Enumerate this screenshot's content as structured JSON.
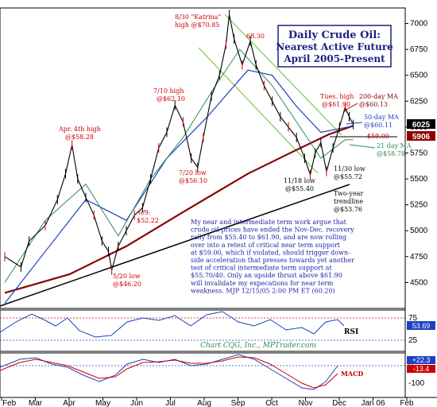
{
  "chart_data": {
    "type": "line",
    "title": "Daily Crude Oil:",
    "subtitle_lines": [
      "Nearest Active Future",
      "April 2005-Present"
    ],
    "price_axis": {
      "ylim": [
        4250,
        7150
      ],
      "ticks": [
        4500,
        4750,
        5000,
        5250,
        5500,
        5750,
        6000,
        6250,
        6500,
        6750,
        7000
      ]
    },
    "x_axis": {
      "tick_labels": [
        "Feb",
        "Mar",
        "Apr",
        "May",
        "Jun",
        "Jul",
        "Aug",
        "Sep",
        "Oct",
        "Nov",
        "Dec",
        "Jan 06",
        "Feb"
      ]
    },
    "price_series": {
      "name": "Crude Oil",
      "points": [
        [
          0,
          4750
        ],
        [
          2,
          4650
        ],
        [
          3,
          4900
        ],
        [
          5,
          5050
        ],
        [
          6.5,
          5300
        ],
        [
          7.5,
          5550
        ],
        [
          8.3,
          5828
        ],
        [
          9,
          5500
        ],
        [
          10,
          5320
        ],
        [
          11,
          5150
        ],
        [
          12,
          4900
        ],
        [
          12.8,
          4800
        ],
        [
          13.2,
          4620
        ],
        [
          14,
          4850
        ],
        [
          15,
          5000
        ],
        [
          16,
          5150
        ],
        [
          17,
          5222
        ],
        [
          18,
          5500
        ],
        [
          19,
          5800
        ],
        [
          20,
          5950
        ],
        [
          21,
          6210
        ],
        [
          22,
          6050
        ],
        [
          23,
          5700
        ],
        [
          23.8,
          5610
        ],
        [
          24.5,
          5900
        ],
        [
          25.5,
          6300
        ],
        [
          26.5,
          6500
        ],
        [
          27.3,
          6800
        ],
        [
          27.7,
          7085
        ],
        [
          28.3,
          6850
        ],
        [
          29.3,
          6600
        ],
        [
          30.3,
          6830
        ],
        [
          31,
          6600
        ],
        [
          32,
          6400
        ],
        [
          33,
          6250
        ],
        [
          34,
          6100
        ],
        [
          35,
          6000
        ],
        [
          36,
          5900
        ],
        [
          37,
          5700
        ],
        [
          37.7,
          5540
        ],
        [
          38.3,
          5750
        ],
        [
          39,
          5850
        ],
        [
          39.7,
          5572
        ],
        [
          40.5,
          5800
        ],
        [
          41.3,
          6000
        ],
        [
          42,
          6190
        ],
        [
          42.5,
          6100
        ],
        [
          43,
          6025
        ]
      ]
    },
    "moving_averages": [
      {
        "name": "200-day MA",
        "value": 60.13,
        "points": [
          [
            0,
            4400
          ],
          [
            8,
            4580
          ],
          [
            15,
            4850
          ],
          [
            22,
            5180
          ],
          [
            30,
            5550
          ],
          [
            36,
            5780
          ],
          [
            40,
            5930
          ],
          [
            43,
            6013
          ]
        ]
      },
      {
        "name": "50-day MA",
        "value": 60.11,
        "points": [
          [
            0,
            4300
          ],
          [
            5,
            4800
          ],
          [
            10,
            5300
          ],
          [
            15,
            5100
          ],
          [
            20,
            5700
          ],
          [
            25,
            6100
          ],
          [
            30,
            6550
          ],
          [
            33,
            6500
          ],
          [
            36,
            6200
          ],
          [
            39,
            5950
          ],
          [
            43,
            6011
          ]
        ]
      },
      {
        "name": "21 day MA",
        "value": 58.78,
        "points": [
          [
            0,
            4500
          ],
          [
            5,
            5100
          ],
          [
            10,
            5450
          ],
          [
            14,
            4950
          ],
          [
            18,
            5500
          ],
          [
            22,
            5900
          ],
          [
            26,
            6400
          ],
          [
            29,
            6750
          ],
          [
            33,
            6400
          ],
          [
            36,
            6050
          ],
          [
            39,
            5700
          ],
          [
            42,
            5878
          ],
          [
            43,
            5878
          ]
        ]
      }
    ],
    "current_price_label": "6025",
    "ma_price_label": "5906",
    "support_level": 5900,
    "rsi": {
      "label": "RSI",
      "value_label": "53.69",
      "ticks": [
        "75",
        "25"
      ]
    },
    "macd": {
      "label": "MACD",
      "ticks": [
        "0",
        "-100"
      ],
      "value_labels": [
        "+22.3",
        "-13.4"
      ]
    },
    "annotations": {
      "apr_high": [
        "Apr. 4th high",
        "@$58.28"
      ],
      "katrina_high": [
        "8/30 \"Katrina\"",
        "high @$70.85"
      ],
      "jul_high": [
        "7/10 high",
        "@$62.10"
      ],
      "sep_label": [
        "68.30"
      ],
      "jul_low": [
        "7/20 low",
        "@$56.10"
      ],
      "jun_label": [
        "6/9:",
        "$52.22"
      ],
      "may_low": [
        "5/20 low",
        "@$46.20"
      ],
      "nov18_low": [
        "11/18 low",
        "@$55.40"
      ],
      "nov30_low": [
        "11/30 low",
        "@$55.72"
      ],
      "trendline": [
        "Two-year",
        "trendline",
        "@$53.76"
      ],
      "tues_high": [
        "Tues. high",
        "@$61.90"
      ],
      "ma200": [
        "200-day MA",
        "@$60.13"
      ],
      "ma50": [
        "50-day MA",
        "@$60.11"
      ],
      "support": [
        "$59.00"
      ],
      "ma21": [
        "21 day MA",
        "@$58.78"
      ]
    },
    "commentary": [
      "My near and intermediate term work argue that",
      "crude oil prices have ended the Nov-Dec. recovery",
      "rally from $55.40 to $61.90, and are now rolling",
      "over into a retest of critical near term support",
      "at $59.00, which if violated, should trigger down-",
      "side acceleration that presses towards yet another",
      "test of critical intermediate term support at",
      "$55.70/40. Only an upside thrust above $61.90",
      "will invalidate my expecations for near term",
      "weakness.  MJP 12/15/05 2:00 PM ET (60.20)"
    ],
    "credit": "Chart CQG, Inc., MPTrader.com",
    "colors": {
      "price": "#000000",
      "ma200": "#8b0000",
      "ma50": "#1f3fbf",
      "ma21": "#2e8b57",
      "channel": "#7ec850",
      "note": "#2222aa",
      "red": "#cc0000"
    }
  }
}
